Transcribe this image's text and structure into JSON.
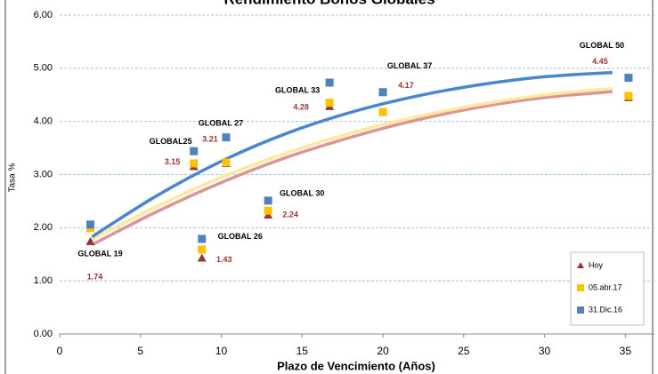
{
  "chart_data": {
    "type": "scatter",
    "title": "Rendimiento Bonos Globales",
    "x_label": "Plazo de Vencimiento  (Años)",
    "y_label": "Tasa %",
    "point_labels": [
      "GLOBAL 19",
      "GLOBAL25",
      "GLOBAL 26",
      "GLOBAL 27",
      "GLOBAL 30",
      "GLOBAL 33",
      "GLOBAL 37",
      "GLOBAL 50"
    ],
    "x": [
      1.9,
      8.3,
      8.8,
      10.3,
      12.9,
      16.7,
      20.0,
      35.2
    ],
    "series": [
      {
        "name": "Hoy",
        "color": "#953735",
        "marker": "triangle",
        "show_values": true,
        "values": [
          1.74,
          3.15,
          1.43,
          3.21,
          2.24,
          4.28,
          4.17,
          4.45
        ],
        "trend_x": [
          2,
          6,
          10,
          14,
          18,
          22,
          26,
          30,
          34.2
        ],
        "trend_values": [
          1.68,
          2.3,
          2.85,
          3.32,
          3.7,
          4.02,
          4.27,
          4.45,
          4.56
        ],
        "trend_color": "#d99694"
      },
      {
        "name": "05.abr.17",
        "color": "#ffc000",
        "marker": "square",
        "show_values": false,
        "values": [
          1.99,
          3.21,
          1.59,
          3.23,
          2.32,
          4.35,
          4.18,
          4.48
        ],
        "trend_x": [
          2,
          6,
          10,
          14,
          18,
          22,
          26,
          30,
          34.2
        ],
        "trend_values": [
          1.78,
          2.4,
          2.95,
          3.4,
          3.78,
          4.08,
          4.32,
          4.5,
          4.62
        ],
        "trend_color": "#fde9a0"
      },
      {
        "name": "31.Dic.16",
        "color": "#4f81bd",
        "marker": "square",
        "show_values": false,
        "values": [
          2.06,
          3.44,
          1.79,
          3.7,
          2.51,
          4.73,
          4.55,
          4.82
        ],
        "trend_x": [
          2,
          6,
          10,
          14,
          18,
          22,
          26,
          30,
          34.2
        ],
        "trend_values": [
          1.83,
          2.6,
          3.25,
          3.77,
          4.17,
          4.47,
          4.69,
          4.84,
          4.92
        ],
        "trend_color": "#4a86d0"
      }
    ],
    "xlim": [
      0,
      36.8
    ],
    "xticks": [
      0,
      5,
      10,
      15,
      20,
      25,
      30,
      35
    ],
    "ylim": [
      0,
      6
    ],
    "yticks": [
      {
        "value": 0,
        "label": "0.00"
      },
      {
        "value": 1,
        "label": "1.00"
      },
      {
        "value": 2,
        "label": "2.00"
      },
      {
        "value": 3,
        "label": "3.00"
      },
      {
        "value": 4,
        "label": "4.00"
      },
      {
        "value": 5,
        "label": "5.00"
      },
      {
        "value": 6,
        "label": "6.00"
      }
    ],
    "grid": true,
    "legend": "lower right"
  }
}
